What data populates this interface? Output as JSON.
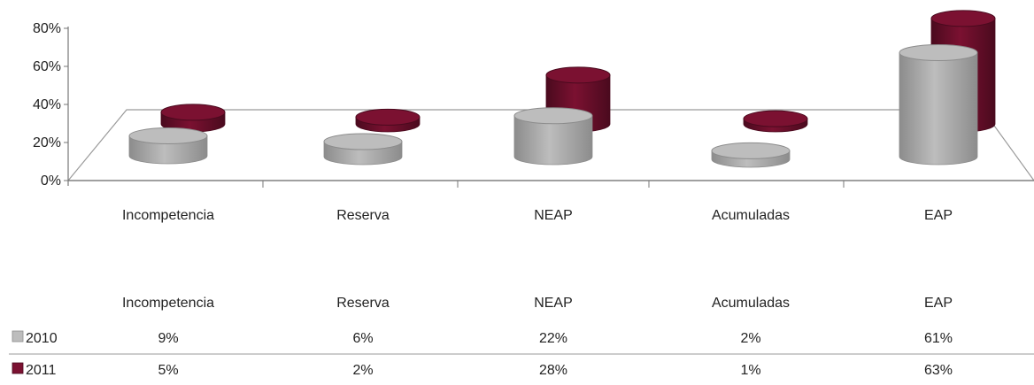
{
  "chart_data": {
    "type": "bar",
    "style": "3d-cylinder",
    "categories": [
      "Incompetencia",
      "Reserva",
      "NEAP",
      "Acumuladas",
      "EAP"
    ],
    "series": [
      {
        "name": "2010",
        "values": [
          9,
          6,
          22,
          2,
          61
        ],
        "labels": [
          "9%",
          "6%",
          "22%",
          "2%",
          "61%"
        ],
        "color": "#bdbdbd",
        "dark": "#8c8c8c"
      },
      {
        "name": "2011",
        "values": [
          5,
          2,
          28,
          1,
          63
        ],
        "labels": [
          "5%",
          "2%",
          "28%",
          "1%",
          "63%"
        ],
        "color": "#7b1131",
        "dark": "#4a0a1e"
      }
    ],
    "y_ticks": [
      "0%",
      "20%",
      "40%",
      "60%",
      "80%"
    ],
    "ylim": [
      0,
      80
    ],
    "data_table": true,
    "legend": "data-table-left"
  }
}
